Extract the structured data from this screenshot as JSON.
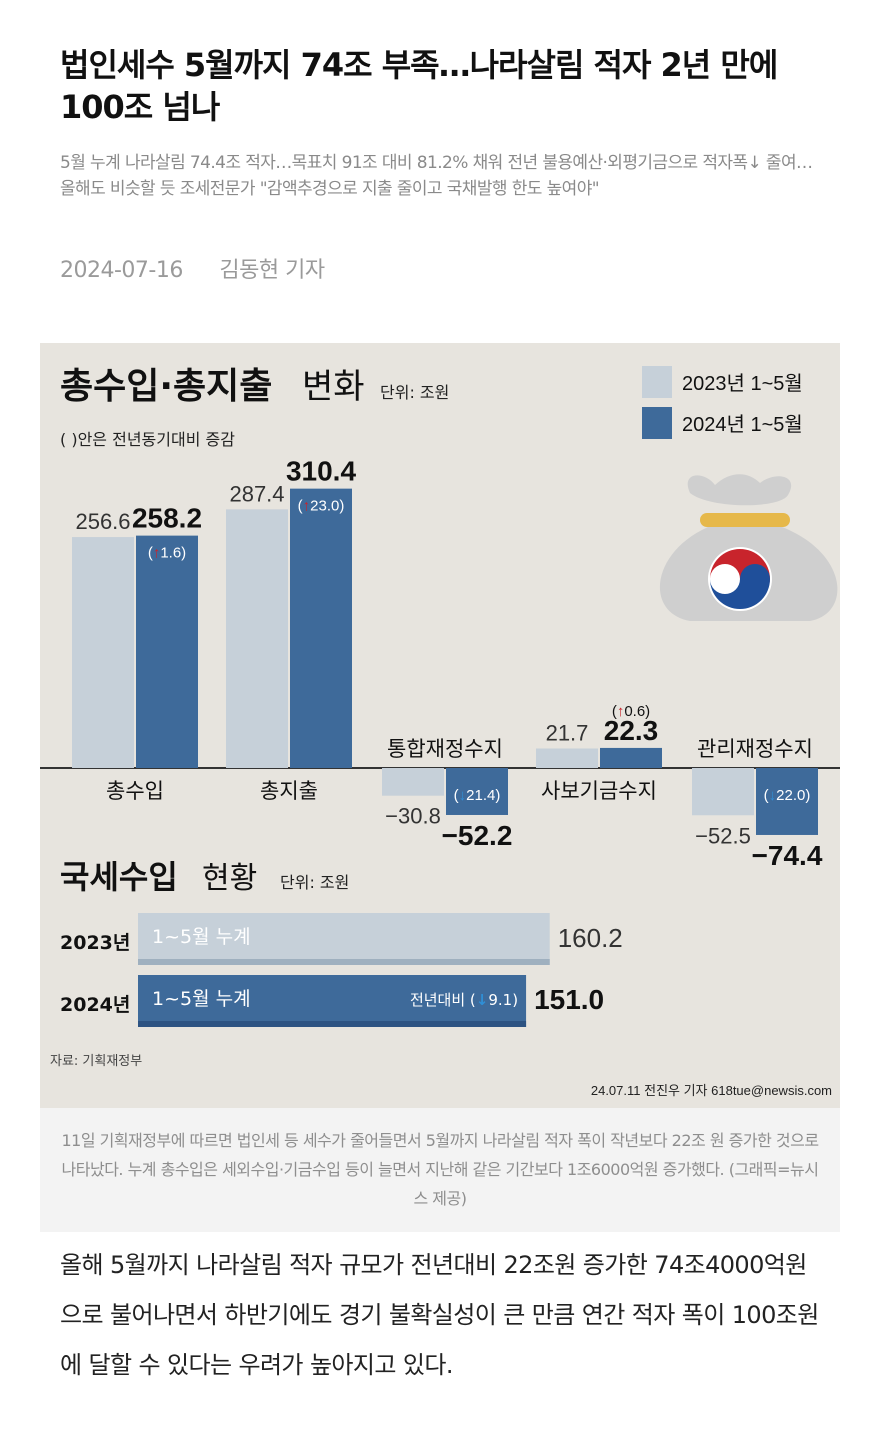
{
  "article": {
    "headline": "법인세수 5월까지 74조 부족…나라살림 적자 2년 만에 100조 넘나",
    "subtitle": "5월 누계 나라살림 74.4조 적자…목표치 91조 대비 81.2% 채워 전년 불용예산·외평기금으로 적자폭↓ 줄여…올해도 비슷할 듯 조세전문가 \"감액추경으로 지출 줄이고 국채발행 한도 높여야\"",
    "date": "2024-07-16",
    "reporter": "김동현 기자",
    "caption": "11일 기획재정부에 따르면 법인세 등 세수가 줄어들면서 5월까지 나라살림 적자 폭이 작년보다 22조 원 증가한 것으로 나타났다. 누계 총수입은 세외수입·기금수입 등이 늘면서 지난해 같은 기간보다 1조6000억원 증가했다. (그래픽=뉴시스 제공)",
    "body": "올해 5월까지 나라살림 적자 규모가 전년대비 22조원 증가한 74조4000억원으로 불어나면서 하반기에도 경기 불확실성이 큰 만큼 연간 적자 폭이 100조원에 달할 수 있다는 우려가 높아지고 있다."
  },
  "infographic": {
    "title_bold": "총수입·총지출",
    "title_light": "변화",
    "unit": "단위: 조원",
    "note": "( )안은 전년동기대비 증감",
    "legend": [
      "2023년 1~5월",
      "2024년 1~5월"
    ],
    "tax_title_bold": "국세수입",
    "tax_title_light": "현황",
    "tax_unit": "단위: 조원",
    "source": "자료: 기획재정부",
    "credit": "24.07.11 전진우 기자 618tue@newsis.com",
    "colors": {
      "y2023": "#c6d0d9",
      "y2024": "#3e6a9a",
      "up": "#c8242c",
      "down": "#2f8fd6",
      "bg": "#e7e4de"
    }
  },
  "chart_data": [
    {
      "type": "bar",
      "title": "총수입·총지출 변화",
      "unit": "조원",
      "categories": [
        "총수입",
        "총지출",
        "통합재정수지",
        "사보기금수지",
        "관리재정수지"
      ],
      "series": [
        {
          "name": "2023년 1~5월",
          "values": [
            256.6,
            287.4,
            -30.8,
            21.7,
            -52.5
          ]
        },
        {
          "name": "2024년 1~5월",
          "values": [
            258.2,
            310.4,
            -52.2,
            22.3,
            -74.4
          ]
        }
      ],
      "changes": [
        {
          "dir": "up",
          "value": "1.6"
        },
        {
          "dir": "up",
          "value": "23.0"
        },
        {
          "dir": "down",
          "value": "21.4"
        },
        {
          "dir": "up",
          "value": "0.6"
        },
        {
          "dir": "down",
          "value": "22.0"
        }
      ],
      "value_labels_2023": [
        "256.6",
        "287.4",
        "−30.8",
        "21.7",
        "−52.5"
      ],
      "value_labels_2024": [
        "258.2",
        "310.4",
        "−52.2",
        "22.3",
        "−74.4"
      ]
    },
    {
      "type": "bar",
      "title": "국세수입 현황",
      "unit": "조원",
      "categories": [
        "2023년",
        "2024년"
      ],
      "bar_labels": [
        "1~5월 누계",
        "1~5월 누계"
      ],
      "values": [
        160.2,
        151.0
      ],
      "value_labels": [
        "160.2",
        "151.0"
      ],
      "change_label": "전년대비 (",
      "change": {
        "dir": "down",
        "value": "9.1"
      }
    }
  ]
}
